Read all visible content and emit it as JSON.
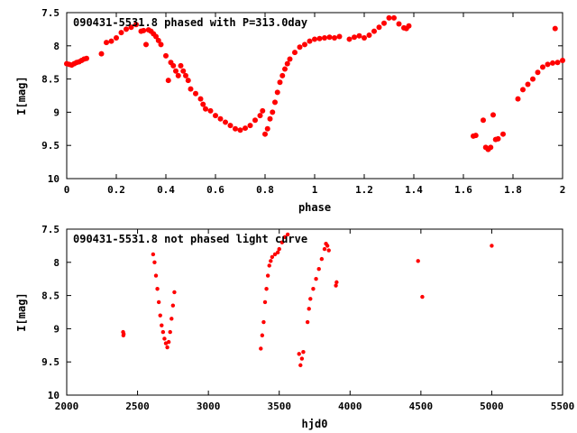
{
  "chart_data": [
    {
      "type": "scatter",
      "title": "090431-5531.8 phased with P=313.0day",
      "xlabel": "phase",
      "ylabel": "I[mag]",
      "xlim": [
        0,
        2
      ],
      "ylim": [
        10,
        7.5
      ],
      "y_inverted": true,
      "grid": false,
      "marker_color": "#ff0000",
      "x_ticks": [
        "0",
        "0.2",
        "0.4",
        "0.6",
        "0.8",
        "1",
        "1.2",
        "1.4",
        "1.6",
        "1.8",
        "2"
      ],
      "y_ticks": [
        "7.5",
        "8",
        "8.5",
        "9",
        "9.5",
        "10"
      ],
      "series": [
        {
          "points": [
            [
              0.0,
              8.27
            ],
            [
              0.01,
              8.28
            ],
            [
              0.02,
              8.29
            ],
            [
              0.03,
              8.27
            ],
            [
              0.04,
              8.25
            ],
            [
              0.05,
              8.24
            ],
            [
              0.06,
              8.22
            ],
            [
              0.07,
              8.2
            ],
            [
              0.08,
              8.19
            ],
            [
              0.14,
              8.12
            ],
            [
              0.16,
              7.95
            ],
            [
              0.18,
              7.93
            ],
            [
              0.2,
              7.88
            ],
            [
              0.22,
              7.8
            ],
            [
              0.24,
              7.75
            ],
            [
              0.26,
              7.72
            ],
            [
              0.28,
              7.68
            ],
            [
              0.3,
              7.78
            ],
            [
              0.31,
              7.77
            ],
            [
              0.32,
              7.98
            ],
            [
              0.33,
              7.76
            ],
            [
              0.34,
              7.78
            ],
            [
              0.35,
              7.82
            ],
            [
              0.36,
              7.86
            ],
            [
              0.37,
              7.92
            ],
            [
              0.38,
              7.98
            ],
            [
              0.4,
              8.15
            ],
            [
              0.42,
              8.25
            ],
            [
              0.43,
              8.3
            ],
            [
              0.44,
              8.38
            ],
            [
              0.45,
              8.45
            ],
            [
              0.46,
              8.3
            ],
            [
              0.47,
              8.38
            ],
            [
              0.48,
              8.45
            ],
            [
              0.49,
              8.52
            ],
            [
              0.5,
              8.65
            ],
            [
              0.52,
              8.72
            ],
            [
              0.54,
              8.8
            ],
            [
              0.55,
              8.88
            ],
            [
              0.56,
              8.95
            ],
            [
              0.58,
              8.98
            ],
            [
              0.6,
              9.05
            ],
            [
              0.62,
              9.1
            ],
            [
              0.64,
              9.15
            ],
            [
              0.66,
              9.2
            ],
            [
              0.68,
              9.25
            ],
            [
              0.7,
              9.27
            ],
            [
              0.72,
              9.24
            ],
            [
              0.74,
              9.2
            ],
            [
              0.76,
              9.12
            ],
            [
              0.78,
              9.05
            ],
            [
              0.79,
              8.98
            ],
            [
              0.8,
              9.33
            ],
            [
              0.81,
              9.25
            ],
            [
              0.82,
              9.1
            ],
            [
              0.83,
              9.0
            ],
            [
              0.84,
              8.85
            ],
            [
              0.85,
              8.7
            ],
            [
              0.86,
              8.55
            ],
            [
              0.87,
              8.45
            ],
            [
              0.88,
              8.35
            ],
            [
              0.89,
              8.27
            ],
            [
              0.9,
              8.2
            ],
            [
              0.92,
              8.1
            ],
            [
              0.94,
              8.02
            ],
            [
              0.96,
              7.98
            ],
            [
              0.98,
              7.93
            ],
            [
              1.0,
              7.9
            ],
            [
              1.02,
              7.89
            ],
            [
              1.04,
              7.88
            ],
            [
              1.06,
              7.87
            ],
            [
              1.08,
              7.88
            ],
            [
              1.1,
              7.86
            ],
            [
              1.14,
              7.9
            ],
            [
              1.16,
              7.87
            ],
            [
              1.18,
              7.85
            ],
            [
              1.2,
              7.88
            ],
            [
              1.22,
              7.84
            ],
            [
              1.24,
              7.78
            ],
            [
              1.26,
              7.72
            ],
            [
              1.28,
              7.66
            ],
            [
              1.3,
              7.58
            ],
            [
              1.32,
              7.58
            ],
            [
              1.34,
              7.67
            ],
            [
              1.36,
              7.73
            ],
            [
              1.37,
              7.74
            ],
            [
              1.38,
              7.7
            ],
            [
              0.41,
              8.52
            ],
            [
              1.64,
              9.36
            ],
            [
              1.65,
              9.35
            ],
            [
              1.68,
              9.12
            ],
            [
              1.69,
              9.53
            ],
            [
              1.7,
              9.56
            ],
            [
              1.71,
              9.53
            ],
            [
              1.72,
              9.04
            ],
            [
              1.73,
              9.41
            ],
            [
              1.74,
              9.4
            ],
            [
              1.76,
              9.33
            ],
            [
              1.82,
              8.8
            ],
            [
              1.84,
              8.66
            ],
            [
              1.86,
              8.58
            ],
            [
              1.88,
              8.5
            ],
            [
              1.9,
              8.4
            ],
            [
              1.92,
              8.32
            ],
            [
              1.94,
              8.28
            ],
            [
              1.96,
              8.26
            ],
            [
              1.98,
              8.25
            ],
            [
              2.0,
              8.22
            ],
            [
              1.97,
              7.74
            ]
          ]
        }
      ]
    },
    {
      "type": "scatter",
      "title": "090431-5531.8 not phased light curve",
      "xlabel": "hjd0",
      "ylabel": "I[mag]",
      "xlim": [
        2000,
        5500
      ],
      "ylim": [
        10,
        7.5
      ],
      "y_inverted": true,
      "grid": false,
      "marker_color": "#ff0000",
      "x_ticks": [
        "2000",
        "2500",
        "3000",
        "3500",
        "4000",
        "4500",
        "5000",
        "5500"
      ],
      "y_ticks": [
        "7.5",
        "8",
        "8.5",
        "9",
        "9.5",
        "10"
      ],
      "series": [
        {
          "points": [
            [
              2398,
              9.05
            ],
            [
              2400,
              9.1
            ],
            [
              2402,
              9.08
            ],
            [
              2610,
              7.88
            ],
            [
              2620,
              8.0
            ],
            [
              2630,
              8.2
            ],
            [
              2640,
              8.4
            ],
            [
              2650,
              8.6
            ],
            [
              2660,
              8.8
            ],
            [
              2670,
              8.95
            ],
            [
              2680,
              9.05
            ],
            [
              2690,
              9.15
            ],
            [
              2700,
              9.22
            ],
            [
              2710,
              9.28
            ],
            [
              2720,
              9.2
            ],
            [
              2730,
              9.05
            ],
            [
              2740,
              8.85
            ],
            [
              2750,
              8.65
            ],
            [
              2760,
              8.45
            ],
            [
              3370,
              9.3
            ],
            [
              3380,
              9.1
            ],
            [
              3390,
              8.9
            ],
            [
              3400,
              8.6
            ],
            [
              3410,
              8.4
            ],
            [
              3420,
              8.2
            ],
            [
              3430,
              8.05
            ],
            [
              3440,
              7.98
            ],
            [
              3450,
              7.92
            ],
            [
              3470,
              7.88
            ],
            [
              3490,
              7.85
            ],
            [
              3500,
              7.8
            ],
            [
              3520,
              7.7
            ],
            [
              3540,
              7.62
            ],
            [
              3560,
              7.58
            ],
            [
              3640,
              9.38
            ],
            [
              3650,
              9.55
            ],
            [
              3660,
              9.45
            ],
            [
              3670,
              9.35
            ],
            [
              3700,
              8.9
            ],
            [
              3710,
              8.7
            ],
            [
              3720,
              8.55
            ],
            [
              3740,
              8.4
            ],
            [
              3760,
              8.25
            ],
            [
              3780,
              8.1
            ],
            [
              3800,
              7.95
            ],
            [
              3820,
              7.8
            ],
            [
              3830,
              7.72
            ],
            [
              3840,
              7.75
            ],
            [
              3850,
              7.82
            ],
            [
              3900,
              8.35
            ],
            [
              3905,
              8.3
            ],
            [
              4480,
              7.98
            ],
            [
              4510,
              8.52
            ],
            [
              5000,
              7.75
            ]
          ]
        }
      ]
    }
  ]
}
